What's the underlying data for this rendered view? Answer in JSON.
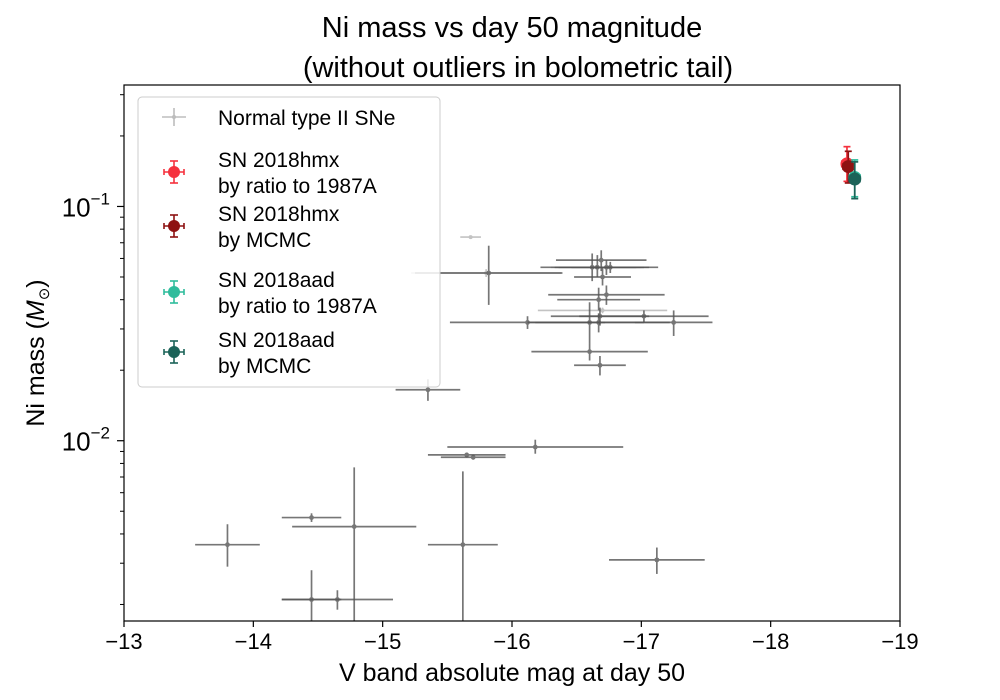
{
  "chart_data": {
    "type": "scatter",
    "title_line1": "Ni mass vs day 50 magnitude",
    "title_line2": "(without outliers in bolometric tail)",
    "xlabel": "V band absolute mag at day 50",
    "ylabel_text": "Ni mass (",
    "ylabel_math": "M",
    "ylabel_sub": "⊙",
    "ylabel_close": ")",
    "xlim": [
      -13,
      -19
    ],
    "ylim": [
      0.0017,
      0.33
    ],
    "yscale": "log",
    "x_ticks": [
      -13,
      -14,
      -15,
      -16,
      -17,
      -18,
      -19
    ],
    "x_tick_labels": [
      "−13",
      "−14",
      "−15",
      "−16",
      "−17",
      "−18",
      "−19"
    ],
    "y_ticks": [
      {
        "value": 0.1,
        "base": "10",
        "exp": "−1"
      },
      {
        "value": 0.01,
        "base": "10",
        "exp": "−2"
      }
    ],
    "grid": false,
    "legend_position": "upper-left",
    "legend": [
      {
        "label": "Normal type II SNe",
        "label2": "",
        "color": "#bdbdbd",
        "marker": "small"
      },
      {
        "label": "SN 2018hmx",
        "label2": " by ratio to 1987A",
        "color": "#f5313d",
        "marker": "big"
      },
      {
        "label": "SN 2018hmx",
        "label2": " by MCMC",
        "color": "#8e1212",
        "marker": "big"
      },
      {
        "label": "SN 2018aad",
        "label2": " by ratio to 1987A",
        "color": "#2fbc9c",
        "marker": "big"
      },
      {
        "label": "SN 2018aad",
        "label2": " by MCMC",
        "color": "#1b6358",
        "marker": "big"
      }
    ],
    "normal_color": "#555555",
    "normal_faint_color": "#bdbdbd",
    "normal_points": [
      {
        "x": -13.8,
        "xerr": 0.25,
        "y": 0.0036,
        "ylo": 0.0029,
        "yhi": 0.0044
      },
      {
        "x": -14.45,
        "xerr": 0.23,
        "y": 0.0047,
        "ylo": 0.0045,
        "yhi": 0.0049
      },
      {
        "x": -14.45,
        "xerr": 0.23,
        "y": 0.0021,
        "ylo": 0.0016,
        "yhi": 0.0028
      },
      {
        "x": -14.65,
        "xerr": 0.43,
        "y": 0.0021,
        "ylo": 0.0019,
        "yhi": 0.0023
      },
      {
        "x": -14.78,
        "xerr": 0.48,
        "y": 0.0043,
        "ylo": 0.0016,
        "yhi": 0.0077
      },
      {
        "x": -15.35,
        "xerr": 0.25,
        "y": 0.0165,
        "ylo": 0.0148,
        "yhi": 0.0183
      },
      {
        "x": -15.62,
        "xerr": 0.27,
        "y": 0.0036,
        "ylo": 0.0016,
        "yhi": 0.0074
      },
      {
        "x": -15.65,
        "xerr": 0.3,
        "y": 0.0087,
        "ylo": 0.0085,
        "yhi": 0.0089
      },
      {
        "x": -15.7,
        "xerr": 0.25,
        "y": 0.0085,
        "ylo": 0.0083,
        "yhi": 0.0087
      },
      {
        "x": -16.18,
        "xerr": 0.68,
        "y": 0.0094,
        "ylo": 0.0088,
        "yhi": 0.0101
      },
      {
        "x": -15.82,
        "xerr": 0.57,
        "y": 0.052,
        "ylo": 0.038,
        "yhi": 0.068
      },
      {
        "x": -16.12,
        "xerr": 0.6,
        "y": 0.032,
        "ylo": 0.03,
        "yhi": 0.034
      },
      {
        "x": -16.6,
        "xerr": 0.42,
        "y": 0.032,
        "ylo": 0.026,
        "yhi": 0.039
      },
      {
        "x": -16.62,
        "xerr": 0.4,
        "y": 0.055,
        "ylo": 0.048,
        "yhi": 0.063
      },
      {
        "x": -16.66,
        "xerr": 0.3,
        "y": 0.055,
        "ylo": 0.05,
        "yhi": 0.062
      },
      {
        "x": -16.69,
        "xerr": 0.35,
        "y": 0.059,
        "ylo": 0.053,
        "yhi": 0.065
      },
      {
        "x": -16.7,
        "xerr": 0.22,
        "y": 0.05,
        "ylo": 0.046,
        "yhi": 0.055
      },
      {
        "x": -16.73,
        "xerr": 0.4,
        "y": 0.055,
        "ylo": 0.051,
        "yhi": 0.059
      },
      {
        "x": -16.76,
        "xerr": 0.3,
        "y": 0.055,
        "ylo": 0.052,
        "yhi": 0.058
      },
      {
        "x": -16.67,
        "xerr": 0.32,
        "y": 0.04,
        "ylo": 0.036,
        "yhi": 0.045
      },
      {
        "x": -16.73,
        "xerr": 0.45,
        "y": 0.042,
        "ylo": 0.038,
        "yhi": 0.046
      },
      {
        "x": -16.68,
        "xerr": 0.38,
        "y": 0.034,
        "ylo": 0.031,
        "yhi": 0.037
      },
      {
        "x": -16.67,
        "xerr": 0.55,
        "y": 0.032,
        "ylo": 0.029,
        "yhi": 0.035
      },
      {
        "x": -17.02,
        "xerr": 0.5,
        "y": 0.034,
        "ylo": 0.032,
        "yhi": 0.036
      },
      {
        "x": -17.25,
        "xerr": 0.3,
        "y": 0.032,
        "ylo": 0.028,
        "yhi": 0.036
      },
      {
        "x": -16.6,
        "xerr": 0.45,
        "y": 0.024,
        "ylo": 0.022,
        "yhi": 0.026
      },
      {
        "x": -16.68,
        "xerr": 0.2,
        "y": 0.021,
        "ylo": 0.019,
        "yhi": 0.023
      },
      {
        "x": -17.12,
        "xerr": 0.37,
        "y": 0.0031,
        "ylo": 0.0027,
        "yhi": 0.0035
      }
    ],
    "faint_points": [
      {
        "x": -15.68,
        "xerr": 0.08,
        "y": 0.074,
        "ylo": 0.073,
        "yhi": 0.075
      },
      {
        "x": -15.8,
        "xerr": 0.58,
        "y": 0.052,
        "ylo": 0.05,
        "yhi": 0.054
      },
      {
        "x": -16.7,
        "xerr": 0.5,
        "y": 0.036,
        "ylo": 0.035,
        "yhi": 0.037
      },
      {
        "x": -16.65,
        "xerr": 0.35,
        "y": 0.055,
        "ylo": 0.054,
        "yhi": 0.056
      }
    ],
    "highlight_points": [
      {
        "name": "SN 2018hmx by ratio to 1987A",
        "color": "#f5313d",
        "x": -18.59,
        "xerr": 0.04,
        "y": 0.152,
        "ylo": 0.128,
        "yhi": 0.18
      },
      {
        "name": "SN 2018hmx by MCMC",
        "color": "#8e1212",
        "x": -18.6,
        "xerr": 0.04,
        "y": 0.148,
        "ylo": 0.126,
        "yhi": 0.172
      },
      {
        "name": "SN 2018aad by ratio to 1987A",
        "color": "#2fbc9c",
        "x": -18.65,
        "xerr": 0.04,
        "y": 0.133,
        "ylo": 0.11,
        "yhi": 0.158
      },
      {
        "name": "SN 2018aad by MCMC",
        "color": "#1b6358",
        "x": -18.65,
        "xerr": 0.04,
        "y": 0.131,
        "ylo": 0.108,
        "yhi": 0.155
      }
    ]
  }
}
